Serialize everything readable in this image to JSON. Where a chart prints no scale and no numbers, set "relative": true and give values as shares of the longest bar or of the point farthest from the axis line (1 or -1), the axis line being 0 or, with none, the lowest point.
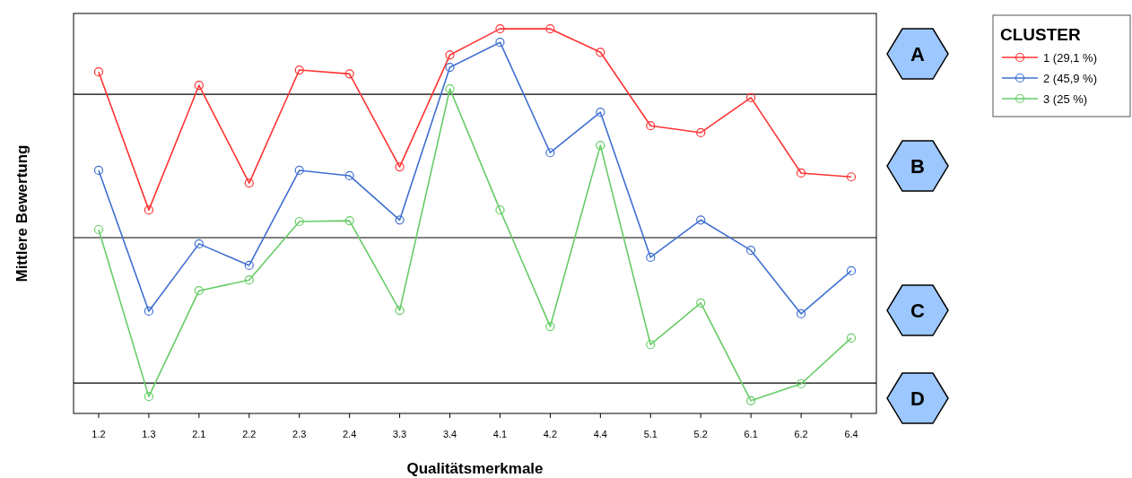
{
  "chart_data": {
    "type": "line",
    "relative": true,
    "xlabel": "Qualitätsmerkmale",
    "ylabel": "Mittlere Bewertung",
    "legend_title": "CLUSTER",
    "legend": "top right",
    "marker": "circle",
    "categories": [
      "1.2",
      "1.3",
      "2.1",
      "2.2",
      "2.3",
      "2.4",
      "3.3",
      "3.4",
      "4.1",
      "4.2",
      "4.4",
      "5.1",
      "5.2",
      "6.1",
      "6.2",
      "6.4"
    ],
    "series": [
      {
        "name": "1 (29,1 %)",
        "color": "#ff3333",
        "values": [
          0.888,
          0.529,
          0.853,
          0.599,
          0.893,
          0.883,
          0.641,
          0.932,
          1,
          1,
          0.939,
          0.748,
          0.73,
          0.821,
          0.625,
          0.615
        ]
      },
      {
        "name": "2 (45,9 %)",
        "color": "#3f6fd1",
        "values": [
          0.632,
          0.266,
          0.441,
          0.385,
          0.632,
          0.618,
          0.503,
          0.9,
          0.965,
          0.678,
          0.783,
          0.406,
          0.503,
          0.424,
          0.259,
          0.371
        ]
      },
      {
        "name": "3 (25 %)",
        "color": "#66cc66",
        "values": [
          0.478,
          0.044,
          0.319,
          0.347,
          0.499,
          0.501,
          0.268,
          0.844,
          0.529,
          0.226,
          0.697,
          0.179,
          0.287,
          0.033,
          0.077,
          0.196
        ]
      }
    ],
    "ref_lines": [
      {
        "axis": "y",
        "value": 0.83,
        "color": "#000000"
      },
      {
        "axis": "y",
        "value": 0.457,
        "color": "#000000"
      },
      {
        "axis": "y",
        "value": 0.079,
        "color": "#000000"
      }
    ],
    "annotations": [
      "A",
      "B",
      "C",
      "D"
    ]
  }
}
